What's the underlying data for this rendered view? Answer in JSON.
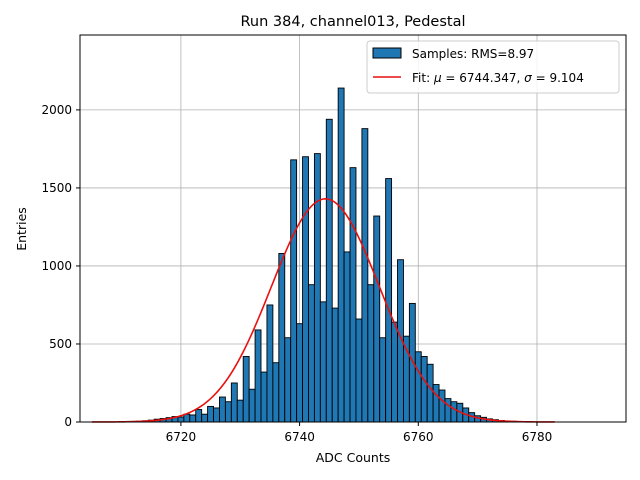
{
  "chart_data": {
    "type": "bar",
    "title": "Run 384, channel013, Pedestal",
    "xlabel": "ADC Counts",
    "ylabel": "Entries",
    "xlim": [
      6703,
      6795
    ],
    "ylim": [
      0,
      2480
    ],
    "x_ticks": [
      6720,
      6740,
      6760,
      6780
    ],
    "y_ticks": [
      0,
      500,
      1000,
      1500,
      2000
    ],
    "grid": true,
    "legend_placement": "top-right",
    "bin_width": 1,
    "bins": [
      {
        "x": 6711,
        "y": 2
      },
      {
        "x": 6712,
        "y": 4
      },
      {
        "x": 6713,
        "y": 5
      },
      {
        "x": 6714,
        "y": 8
      },
      {
        "x": 6715,
        "y": 12
      },
      {
        "x": 6716,
        "y": 18
      },
      {
        "x": 6717,
        "y": 22
      },
      {
        "x": 6718,
        "y": 28
      },
      {
        "x": 6719,
        "y": 35
      },
      {
        "x": 6720,
        "y": 32
      },
      {
        "x": 6721,
        "y": 50
      },
      {
        "x": 6722,
        "y": 45
      },
      {
        "x": 6723,
        "y": 80
      },
      {
        "x": 6724,
        "y": 50
      },
      {
        "x": 6725,
        "y": 100
      },
      {
        "x": 6726,
        "y": 90
      },
      {
        "x": 6727,
        "y": 160
      },
      {
        "x": 6728,
        "y": 130
      },
      {
        "x": 6729,
        "y": 250
      },
      {
        "x": 6730,
        "y": 140
      },
      {
        "x": 6731,
        "y": 420
      },
      {
        "x": 6732,
        "y": 210
      },
      {
        "x": 6733,
        "y": 590
      },
      {
        "x": 6734,
        "y": 320
      },
      {
        "x": 6735,
        "y": 750
      },
      {
        "x": 6736,
        "y": 380
      },
      {
        "x": 6737,
        "y": 1080
      },
      {
        "x": 6738,
        "y": 540
      },
      {
        "x": 6739,
        "y": 1680
      },
      {
        "x": 6740,
        "y": 630
      },
      {
        "x": 6741,
        "y": 1700
      },
      {
        "x": 6742,
        "y": 880
      },
      {
        "x": 6743,
        "y": 1720
      },
      {
        "x": 6744,
        "y": 770
      },
      {
        "x": 6745,
        "y": 1940
      },
      {
        "x": 6746,
        "y": 730
      },
      {
        "x": 6747,
        "y": 2140
      },
      {
        "x": 6748,
        "y": 1090
      },
      {
        "x": 6749,
        "y": 1630
      },
      {
        "x": 6750,
        "y": 660
      },
      {
        "x": 6751,
        "y": 1880
      },
      {
        "x": 6752,
        "y": 880
      },
      {
        "x": 6753,
        "y": 1320
      },
      {
        "x": 6754,
        "y": 540
      },
      {
        "x": 6755,
        "y": 1560
      },
      {
        "x": 6756,
        "y": 640
      },
      {
        "x": 6757,
        "y": 1040
      },
      {
        "x": 6758,
        "y": 550
      },
      {
        "x": 6759,
        "y": 760
      },
      {
        "x": 6760,
        "y": 450
      },
      {
        "x": 6761,
        "y": 420
      },
      {
        "x": 6762,
        "y": 370
      },
      {
        "x": 6763,
        "y": 240
      },
      {
        "x": 6764,
        "y": 205
      },
      {
        "x": 6765,
        "y": 150
      },
      {
        "x": 6766,
        "y": 130
      },
      {
        "x": 6767,
        "y": 120
      },
      {
        "x": 6768,
        "y": 90
      },
      {
        "x": 6769,
        "y": 60
      },
      {
        "x": 6770,
        "y": 40
      },
      {
        "x": 6771,
        "y": 30
      },
      {
        "x": 6772,
        "y": 20
      },
      {
        "x": 6773,
        "y": 15
      },
      {
        "x": 6774,
        "y": 10
      },
      {
        "x": 6775,
        "y": 7
      },
      {
        "x": 6776,
        "y": 5
      },
      {
        "x": 6777,
        "y": 3
      }
    ],
    "fit": {
      "mu": 6744.347,
      "sigma": 9.104,
      "amplitude": 1430,
      "x_range": [
        6705,
        6783
      ]
    },
    "series": [
      {
        "name": "Samples: RMS=8.97",
        "kind": "histogram",
        "color": "#1f77b4"
      },
      {
        "name_prefix": "Fit: ",
        "name_mu_value": "6744.347",
        "name_sigma_value": "9.104",
        "kind": "line",
        "color": "#e8110f"
      }
    ]
  }
}
